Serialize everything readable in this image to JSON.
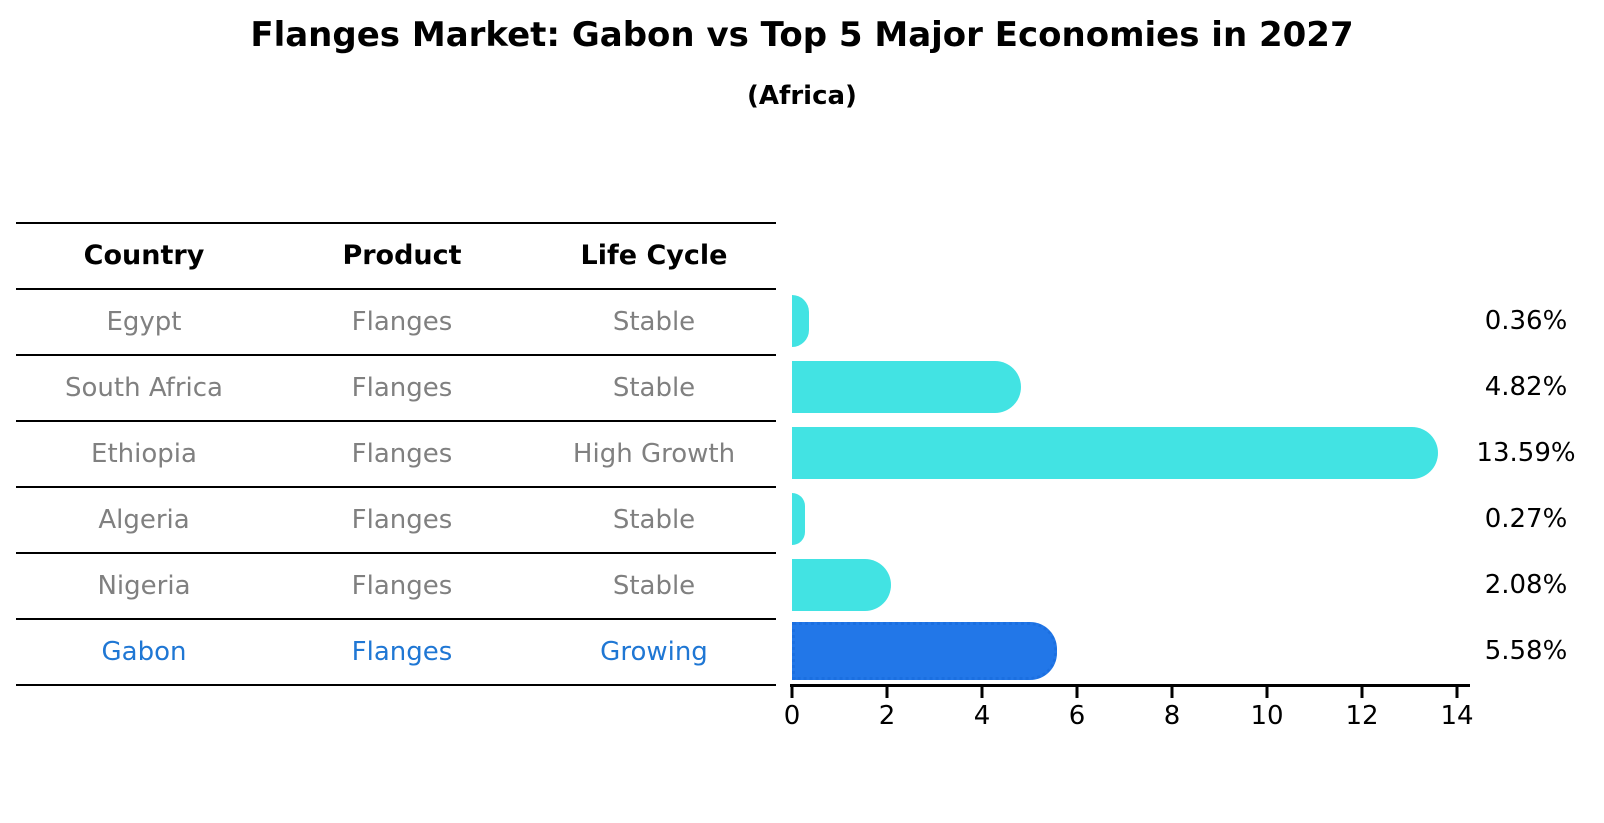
{
  "title": "Flanges Market: Gabon vs Top 5 Major Economies in 2027",
  "subtitle": "(Africa)",
  "table": {
    "headers": [
      "Country",
      "Product",
      "Life Cycle"
    ],
    "rows": [
      {
        "country": "Egypt",
        "product": "Flanges",
        "life_cycle": "Stable"
      },
      {
        "country": "South Africa",
        "product": "Flanges",
        "life_cycle": "Stable"
      },
      {
        "country": "Ethiopia",
        "product": "Flanges",
        "life_cycle": "High Growth"
      },
      {
        "country": "Algeria",
        "product": "Flanges",
        "life_cycle": "Stable"
      },
      {
        "country": "Nigeria",
        "product": "Flanges",
        "life_cycle": "Stable"
      },
      {
        "country": "Gabon",
        "product": "Flanges",
        "life_cycle": "Growing"
      }
    ]
  },
  "chart_data": {
    "type": "bar",
    "orientation": "horizontal",
    "title": "Flanges Market: Gabon vs Top 5 Major Economies in 2027",
    "subtitle": "(Africa)",
    "categories": [
      "Egypt",
      "South Africa",
      "Ethiopia",
      "Algeria",
      "Nigeria",
      "Gabon"
    ],
    "values": [
      0.36,
      4.82,
      13.59,
      0.27,
      2.08,
      5.58
    ],
    "value_labels": [
      "0.36%",
      "4.82%",
      "13.59%",
      "0.27%",
      "2.08%",
      "5.58%"
    ],
    "xlim": [
      0,
      14
    ],
    "xticks": [
      "0",
      "2",
      "4",
      "6",
      "8",
      "10",
      "12",
      "14"
    ],
    "xlabel": "",
    "ylabel": "",
    "grid": false,
    "legend": false,
    "highlight_index": 5,
    "bar_color": "#42E3E3",
    "highlight_bar_color": "#2277E8",
    "highlight_border_color": "#1B6FE0",
    "highlight_text_color": "#1F77D4",
    "row_text_color": "#808080"
  }
}
